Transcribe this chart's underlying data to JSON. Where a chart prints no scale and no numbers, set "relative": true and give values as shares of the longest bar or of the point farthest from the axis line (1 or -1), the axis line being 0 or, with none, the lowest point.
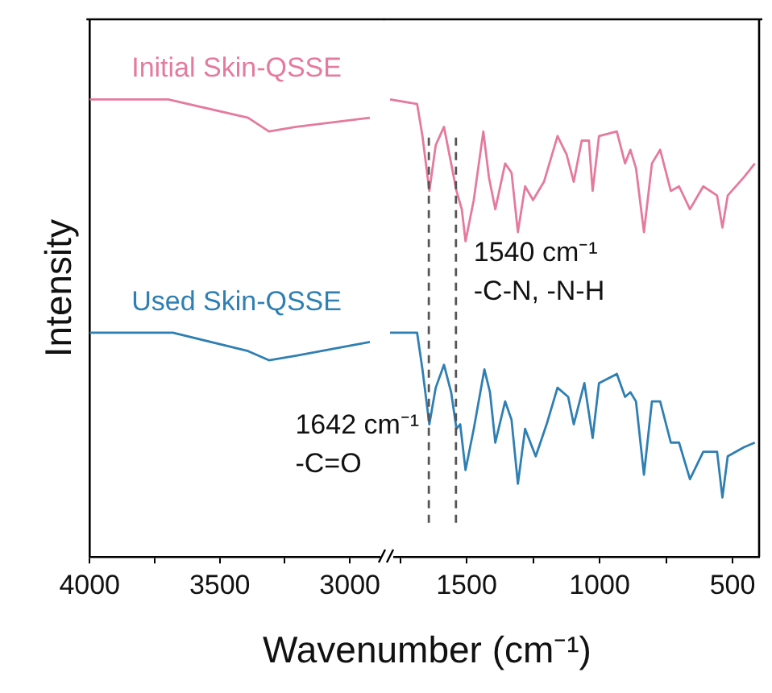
{
  "chart_data": [
    {
      "type": "line",
      "relative": true,
      "xlabel": "Wavenumber (cm⁻¹)",
      "ylabel": "Intensity",
      "xlim": [
        4000,
        2880
      ],
      "xticks": [
        4000,
        {
          "value": 3750,
          "label": null
        },
        3500,
        {
          "value": 3250,
          "label": null
        },
        3000
      ],
      "line_style": "solid",
      "marker": "none",
      "grid": false,
      "legend": false,
      "series": [
        {
          "name": "Initial Skin-QSSE",
          "color": "#e57a9f",
          "x": [
            4000,
            3698,
            3391,
            3311,
            3206,
            2923
          ],
          "values": [
            1.0,
            1.0,
            0.96,
            0.93,
            0.94,
            0.96
          ]
        },
        {
          "name": "Used Skin-QSSE",
          "color": "#2f7fb2",
          "x": [
            4000,
            3680,
            3391,
            3311,
            3206,
            2923
          ],
          "values": [
            0.49,
            0.49,
            0.45,
            0.43,
            0.44,
            0.47
          ]
        }
      ]
    },
    {
      "type": "line",
      "relative": true,
      "xlim": [
        1800,
        400
      ],
      "xticks": [
        {
          "value": 1750,
          "label": null
        },
        1500,
        {
          "value": 1250,
          "label": null
        },
        1000,
        {
          "value": 750,
          "label": null
        },
        500
      ],
      "line_style": "solid",
      "marker": "none",
      "grid": false,
      "legend": false,
      "ref_lines": [
        {
          "axis": "x",
          "value": 1642,
          "label": "1642 cm⁻¹\n-C=O",
          "color": "#555555",
          "line_style": "dashed"
        },
        {
          "axis": "x",
          "value": 1540,
          "label": "1540 cm⁻¹\n-C-N, -N-H",
          "color": "#555555",
          "line_style": "dashed"
        }
      ],
      "series": [
        {
          "color": "#e57a9f",
          "x": [
            1788,
            1686,
            1666,
            1640,
            1616,
            1585,
            1558,
            1538,
            1518,
            1504,
            1473,
            1437,
            1416,
            1392,
            1355,
            1331,
            1307,
            1280,
            1250,
            1209,
            1158,
            1124,
            1097,
            1067,
            1040,
            1026,
            1002,
            935,
            904,
            884,
            863,
            833,
            803,
            772,
            732,
            701,
            660,
            610,
            558,
            538,
            518,
            457,
            416
          ],
          "values": [
            1.0,
            0.99,
            0.92,
            0.8,
            0.9,
            0.94,
            0.86,
            0.8,
            0.76,
            0.69,
            0.78,
            0.93,
            0.83,
            0.76,
            0.86,
            0.84,
            0.71,
            0.81,
            0.78,
            0.82,
            0.92,
            0.88,
            0.82,
            0.91,
            0.91,
            0.8,
            0.92,
            0.93,
            0.86,
            0.89,
            0.85,
            0.71,
            0.86,
            0.89,
            0.8,
            0.81,
            0.76,
            0.81,
            0.79,
            0.72,
            0.79,
            0.83,
            0.86
          ]
        },
        {
          "color": "#2f7fb2",
          "x": [
            1788,
            1686,
            1666,
            1640,
            1616,
            1585,
            1558,
            1538,
            1524,
            1504,
            1473,
            1433,
            1412,
            1392,
            1355,
            1331,
            1307,
            1280,
            1240,
            1199,
            1158,
            1118,
            1097,
            1057,
            1026,
            1002,
            935,
            904,
            884,
            863,
            833,
            803,
            772,
            732,
            701,
            660,
            610,
            558,
            538,
            518,
            457,
            416
          ],
          "values": [
            0.49,
            0.49,
            0.41,
            0.29,
            0.37,
            0.42,
            0.36,
            0.28,
            0.29,
            0.19,
            0.28,
            0.41,
            0.36,
            0.25,
            0.34,
            0.3,
            0.16,
            0.28,
            0.22,
            0.29,
            0.37,
            0.35,
            0.29,
            0.38,
            0.26,
            0.38,
            0.4,
            0.35,
            0.36,
            0.34,
            0.18,
            0.34,
            0.34,
            0.25,
            0.25,
            0.17,
            0.23,
            0.23,
            0.13,
            0.22,
            0.24,
            0.25
          ]
        }
      ]
    }
  ]
}
